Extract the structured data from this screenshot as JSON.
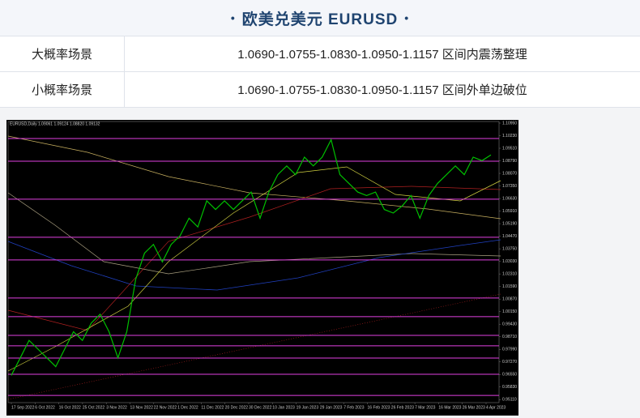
{
  "header": {
    "title": "欧美兑美元 EURUSD"
  },
  "table": {
    "rows": [
      [
        "大概率场景",
        "1.0690-1.0755-1.0830-1.0950-1.1157 区间内震荡整理"
      ],
      [
        "小概率场景",
        "1.0690-1.0755-1.0830-1.0950-1.1157 区间外单边破位"
      ]
    ]
  },
  "chart_data": {
    "type": "line",
    "title": "EURUSD,Daily  1.09061 1.09124 1.08820 1.09132",
    "x_labels": [
      "17 Sep 2022",
      "6 Oct 2022",
      "16 Oct 2022",
      "25 Oct 2022",
      "3 Nov 2022",
      "13 Nov 2022",
      "22 Nov 2022",
      "1 Dec 2022",
      "11 Dec 2022",
      "20 Dec 2022",
      "30 Dec 2022",
      "10 Jan 2023",
      "19 Jan 2023",
      "29 Jan 2023",
      "7 Feb 2023",
      "16 Feb 2023",
      "26 Feb 2023",
      "7 Mar 2023",
      "16 Mar 2023",
      "26 Mar 2023",
      "4 Apr 2023"
    ],
    "series": [
      {
        "color": "#00c000",
        "values": [
          0.965,
          0.975,
          0.985,
          0.98,
          0.975,
          0.97,
          0.98,
          0.99,
          0.985,
          0.995,
          1.0,
          0.99,
          0.975,
          0.99,
          1.02,
          1.035,
          1.04,
          1.03,
          1.04,
          1.045,
          1.055,
          1.05,
          1.065,
          1.06,
          1.065,
          1.06,
          1.065,
          1.07,
          1.055,
          1.07,
          1.08,
          1.085,
          1.08,
          1.09,
          1.085,
          1.09,
          1.1,
          1.08,
          1.075,
          1.07,
          1.068,
          1.07,
          1.06,
          1.058,
          1.062,
          1.068,
          1.055,
          1.068,
          1.075,
          1.08,
          1.085,
          1.08,
          1.09,
          1.088,
          1.0913
        ]
      }
    ],
    "levels": {
      "color": "#e040e0",
      "values": [
        1.1007,
        1.0877,
        1.0659,
        1.0441,
        1.0311,
        1.0093,
        0.9986,
        0.9879,
        0.9819,
        0.9749,
        0.9656,
        0.9535
      ]
    },
    "ylim": [
      0.9503,
      1.1095
    ],
    "yticks": [
      {
        "value": 1.1095,
        "label": "1.10950"
      },
      {
        "value": 1.1023,
        "label": "1.10230"
      },
      {
        "value": 1.0951,
        "label": "1.09510"
      },
      {
        "value": 1.0879,
        "label": "1.08790"
      },
      {
        "value": 1.0807,
        "label": "1.08070"
      },
      {
        "value": 1.0735,
        "label": "1.07350"
      },
      {
        "value": 1.0663,
        "label": "1.06630"
      },
      {
        "value": 1.0591,
        "label": "1.05910"
      },
      {
        "value": 1.0519,
        "label": "1.05190"
      },
      {
        "value": 1.0447,
        "label": "1.04470"
      },
      {
        "value": 1.0375,
        "label": "1.03750"
      },
      {
        "value": 1.0303,
        "label": "1.03030"
      },
      {
        "value": 1.0231,
        "label": "1.02310"
      },
      {
        "value": 1.0159,
        "label": "1.01590"
      },
      {
        "value": 1.0087,
        "label": "1.00870"
      },
      {
        "value": 1.0015,
        "label": "1.00150"
      },
      {
        "value": 0.9943,
        "label": "0.99430"
      },
      {
        "value": 0.9871,
        "label": "0.98710"
      },
      {
        "value": 0.9799,
        "label": "0.97990"
      },
      {
        "value": 0.9727,
        "label": "0.97270"
      },
      {
        "value": 0.9655,
        "label": "0.96550"
      },
      {
        "value": 0.9583,
        "label": "0.95830"
      },
      {
        "value": 0.9511,
        "label": "0.95110"
      }
    ]
  }
}
